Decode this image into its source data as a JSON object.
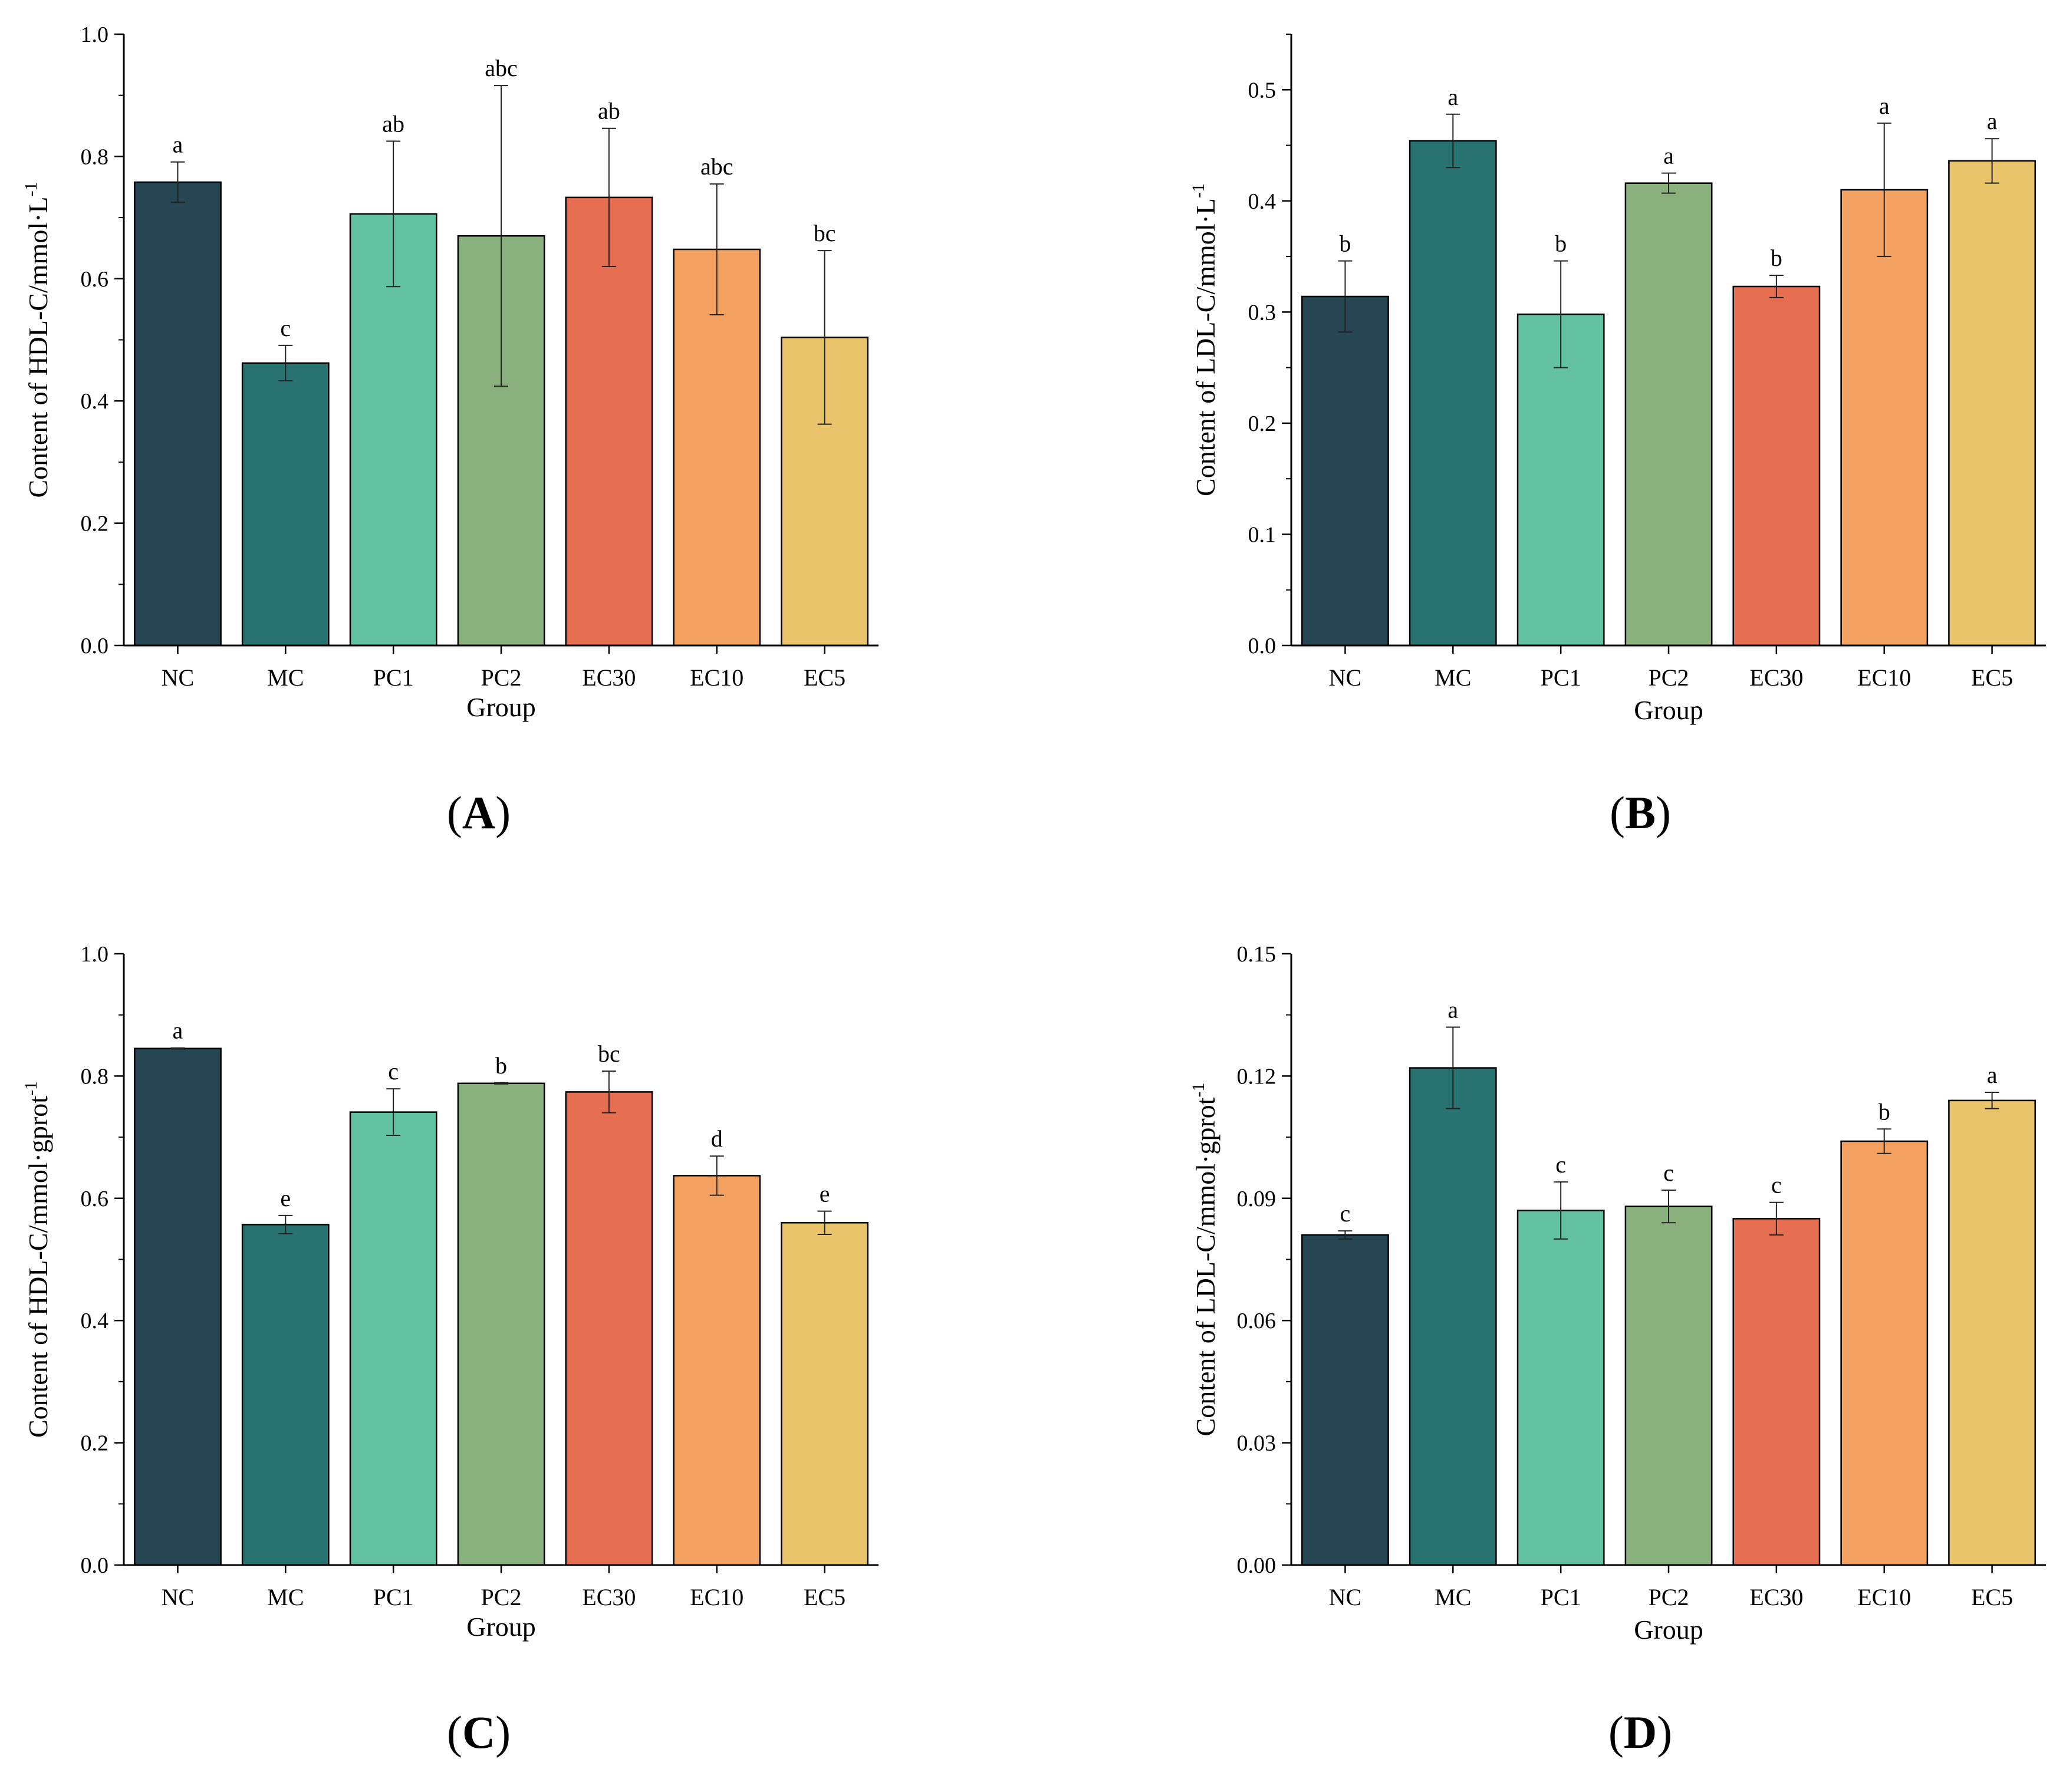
{
  "chart_data": [
    {
      "type": "bar",
      "panel": "A",
      "title": "",
      "xlabel": "Group",
      "ylabel": "Content of HDL-C/mmol·L",
      "ylabel_sup": "-1",
      "ylim": [
        0,
        1.0
      ],
      "yticks": [
        "0.0",
        "0.2",
        "0.4",
        "0.6",
        "0.8",
        "1.0"
      ],
      "ytick_values": [
        0,
        0.2,
        0.4,
        0.6,
        0.8,
        1.0
      ],
      "categories": [
        "NC",
        "MC",
        "PC1",
        "PC2",
        "EC30",
        "EC10",
        "EC5"
      ],
      "values": [
        0.758,
        0.462,
        0.706,
        0.67,
        0.733,
        0.648,
        0.504
      ],
      "errors": [
        0.033,
        0.029,
        0.119,
        0.246,
        0.113,
        0.107,
        0.142
      ],
      "significance": [
        "a",
        "c",
        "ab",
        "abc",
        "ab",
        "abc",
        "bc"
      ]
    },
    {
      "type": "bar",
      "panel": "B",
      "title": "",
      "xlabel": "Group",
      "ylabel": "Content of LDL-C/mmol·L",
      "ylabel_sup": "-1",
      "ylim": [
        0,
        0.55
      ],
      "yticks": [
        "0.0",
        "0.1",
        "0.2",
        "0.3",
        "0.4",
        "0.5"
      ],
      "ytick_values": [
        0,
        0.1,
        0.2,
        0.3,
        0.4,
        0.5
      ],
      "categories": [
        "NC",
        "MC",
        "PC1",
        "PC2",
        "EC30",
        "EC10",
        "EC5"
      ],
      "values": [
        0.314,
        0.454,
        0.298,
        0.416,
        0.323,
        0.41,
        0.436
      ],
      "errors": [
        0.032,
        0.024,
        0.048,
        0.009,
        0.01,
        0.06,
        0.02
      ],
      "significance": [
        "b",
        "a",
        "b",
        "a",
        "b",
        "a",
        "a"
      ]
    },
    {
      "type": "bar",
      "panel": "C",
      "title": "",
      "xlabel": "Group",
      "ylabel": "Content of HDL-C/mmol·gprot",
      "ylabel_sup": "-1",
      "ylim": [
        0,
        1.0
      ],
      "yticks": [
        "0.0",
        "0.2",
        "0.4",
        "0.6",
        "0.8",
        "1.0"
      ],
      "ytick_values": [
        0,
        0.2,
        0.4,
        0.6,
        0.8,
        1.0
      ],
      "categories": [
        "NC",
        "MC",
        "PC1",
        "PC2",
        "EC30",
        "EC10",
        "EC5"
      ],
      "values": [
        0.845,
        0.557,
        0.741,
        0.788,
        0.774,
        0.637,
        0.56
      ],
      "errors": [
        0.001,
        0.015,
        0.038,
        0.001,
        0.034,
        0.032,
        0.019
      ],
      "significance": [
        "a",
        "e",
        "c",
        "b",
        "bc",
        "d",
        "e"
      ]
    },
    {
      "type": "bar",
      "panel": "D",
      "title": "",
      "xlabel": "Group",
      "ylabel": "Content of LDL-C/mmol·gprot",
      "ylabel_sup": "-1",
      "ylim": [
        0,
        0.15
      ],
      "yticks": [
        "0.00",
        "0.03",
        "0.06",
        "0.09",
        "0.12",
        "0.15"
      ],
      "ytick_values": [
        0,
        0.03,
        0.06,
        0.09,
        0.12,
        0.15
      ],
      "categories": [
        "NC",
        "MC",
        "PC1",
        "PC2",
        "EC30",
        "EC10",
        "EC5"
      ],
      "values": [
        0.081,
        0.122,
        0.087,
        0.088,
        0.085,
        0.104,
        0.114
      ],
      "errors": [
        0.001,
        0.01,
        0.007,
        0.004,
        0.004,
        0.003,
        0.002
      ],
      "significance": [
        "c",
        "a",
        "c",
        "c",
        "c",
        "b",
        "a"
      ]
    }
  ],
  "colors": {
    "bars": [
      "#264653",
      "#287271",
      "#62c1a1",
      "#8ab17d",
      "#e76f51",
      "#f4a261",
      "#e9c46a"
    ],
    "outline": "#000000"
  }
}
